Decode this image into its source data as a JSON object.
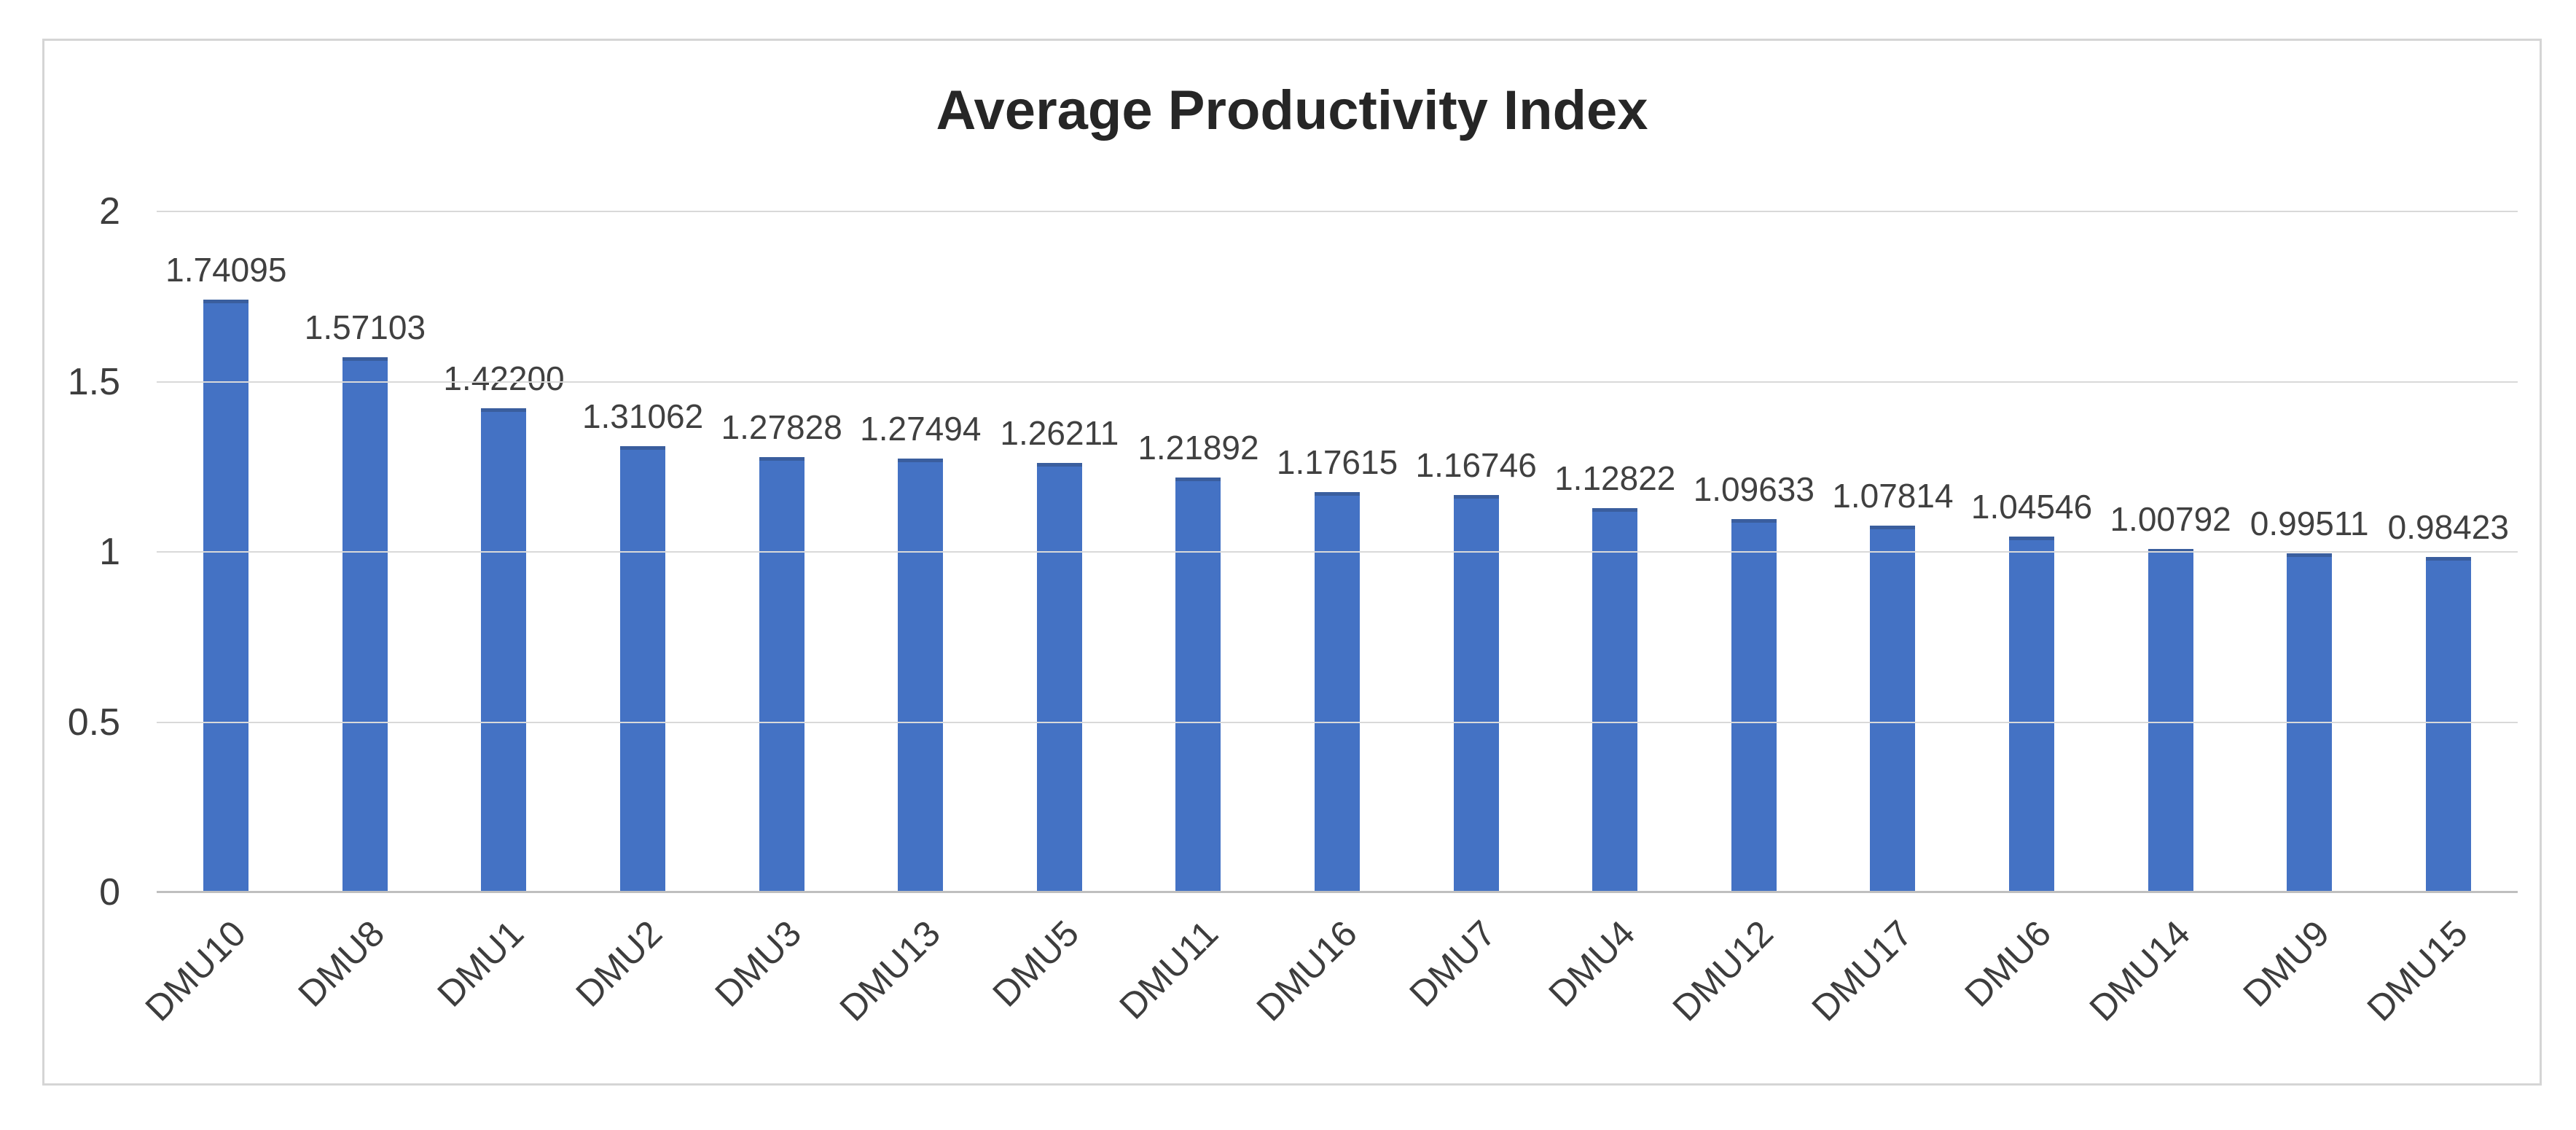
{
  "chart_data": {
    "type": "bar",
    "title": "Average Productivity Index",
    "categories": [
      "DMU10",
      "DMU8",
      "DMU1",
      "DMU2",
      "DMU3",
      "DMU13",
      "DMU5",
      "DMU11",
      "DMU16",
      "DMU7",
      "DMU4",
      "DMU12",
      "DMU17",
      "DMU6",
      "DMU14",
      "DMU9",
      "DMU15"
    ],
    "values": [
      1.74095,
      1.57103,
      1.422,
      1.31062,
      1.27828,
      1.27494,
      1.26211,
      1.21892,
      1.17615,
      1.16746,
      1.12822,
      1.09633,
      1.07814,
      1.04546,
      1.00792,
      0.99511,
      0.98423
    ],
    "data_labels": [
      "1.74095",
      "1.57103",
      "1.42200",
      "1.31062",
      "1.27828",
      "1.27494",
      "1.26211",
      "1.21892",
      "1.17615",
      "1.16746",
      "1.12822",
      "1.09633",
      "1.07814",
      "1.04546",
      "1.00792",
      "0.99511",
      "0.98423"
    ],
    "xlabel": "",
    "ylabel": "",
    "ylim": [
      0,
      2
    ],
    "yticks": [
      0,
      0.5,
      1,
      1.5,
      2
    ],
    "ytick_labels": [
      "0",
      "0.5",
      "1",
      "1.5",
      "2"
    ],
    "grid": true,
    "legend_position": "none",
    "colors": {
      "bar": "#4472C4",
      "bar_top_edge": "#3A5E9E",
      "gridline": "#D9D9D9",
      "axis_line": "#BFBFBF",
      "title_text": "#262626",
      "axis_text": "#3D3D3D",
      "data_label_text": "#404040",
      "frame_border": "#D5D5D5",
      "background": "#FFFFFF"
    }
  }
}
